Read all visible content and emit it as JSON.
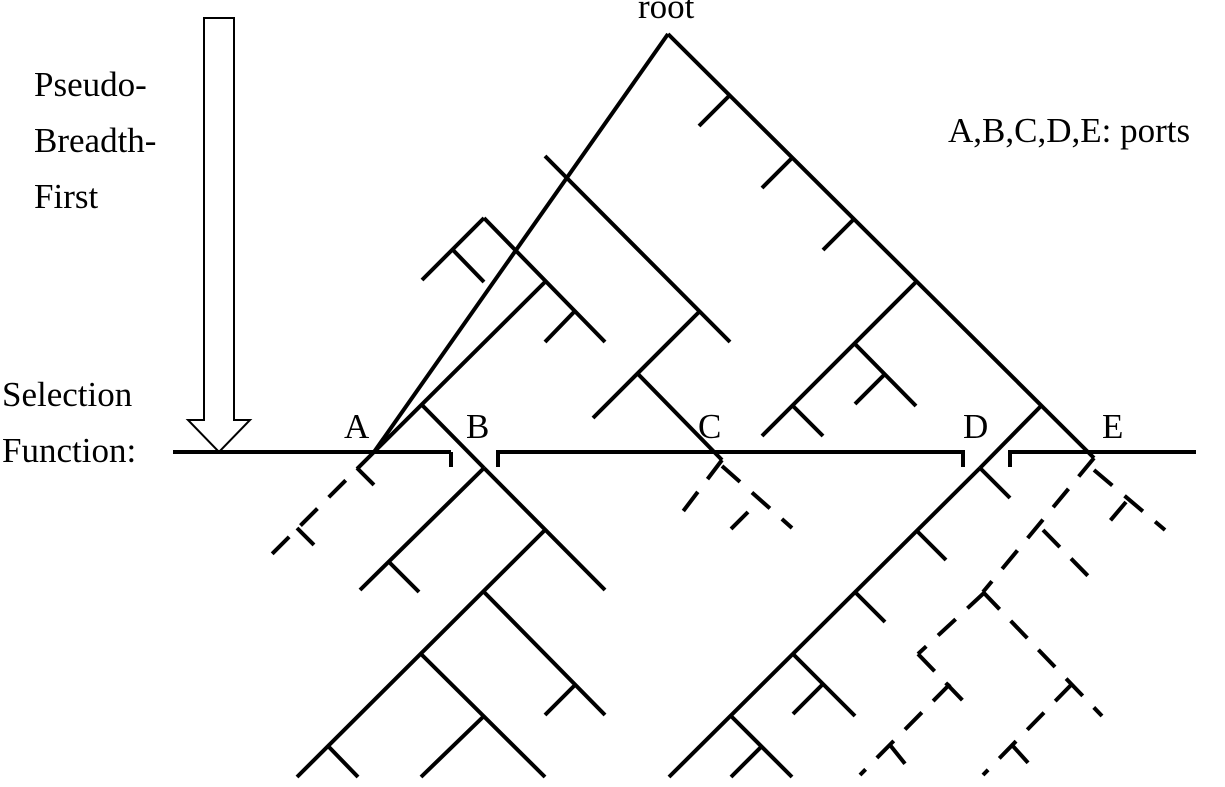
{
  "labels": {
    "root": "root",
    "legend": "A,B,C,D,E: ports",
    "strategy_line1": "Pseudo-",
    "strategy_line2": "Breadth-",
    "strategy_line3": "First",
    "selection_line1": "Selection",
    "selection_line2": "Function:",
    "port_a": "A",
    "port_b": "B",
    "port_c": "C",
    "port_d": "D",
    "port_e": "E"
  },
  "colors": {
    "stroke": "#000000",
    "background": "#ffffff"
  }
}
